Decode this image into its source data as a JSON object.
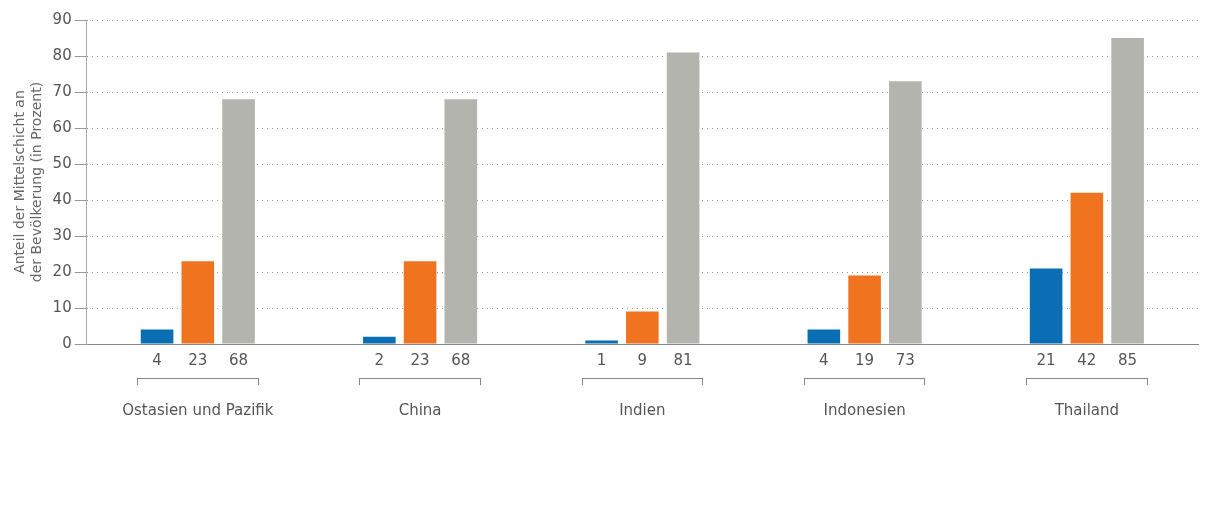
{
  "chart_data": {
    "type": "bar",
    "ylabel": "Anteil der Mittelschicht an der Bevölkerung (in Prozent)",
    "categories": [
      "Ostasien und Pazifik",
      "China",
      "Indien",
      "Indonesien",
      "Thailand"
    ],
    "series": [
      {
        "color": "#0a6eb4",
        "values": [
          4,
          2,
          1,
          4,
          21
        ]
      },
      {
        "color": "#f07320",
        "values": [
          23,
          23,
          9,
          19,
          42
        ]
      },
      {
        "color": "#b4b4ae",
        "values": [
          68,
          68,
          81,
          73,
          85
        ]
      }
    ],
    "ylim": [
      0,
      90
    ],
    "yticks": [
      0,
      10,
      20,
      30,
      40,
      50,
      60,
      70,
      80,
      90
    ],
    "grid": "y",
    "data_labels": true,
    "legend": false
  }
}
